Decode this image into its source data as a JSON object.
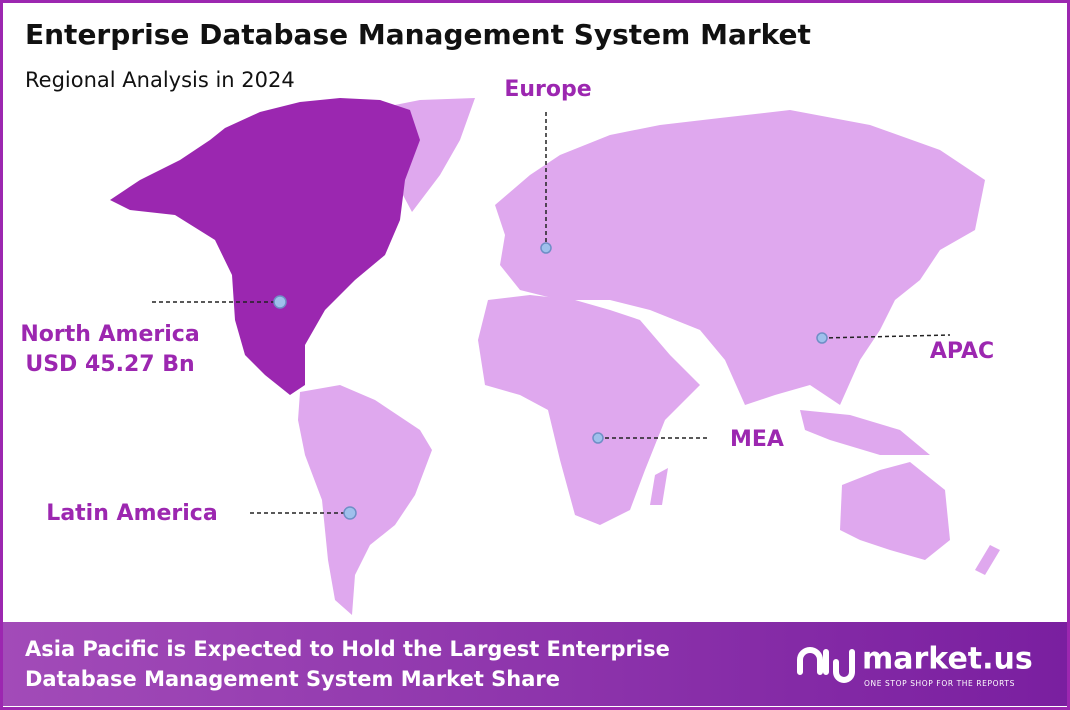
{
  "header": {
    "title": "Enterprise Database Management System Market",
    "subtitle": "Regional Analysis in 2024"
  },
  "regions": [
    {
      "label": "Europe"
    },
    {
      "label": "North America",
      "value_label": "USD 45.27 Bn"
    },
    {
      "label": "APAC"
    },
    {
      "label": "MEA"
    },
    {
      "label": "Latin America"
    }
  ],
  "footer": {
    "lines": [
      "Asia Pacific is Expected to Hold the Largest  Enterprise",
      "Database Management System Market Share"
    ],
    "brand": "market.us",
    "tagline": "ONE STOP SHOP FOR THE REPORTS"
  }
}
